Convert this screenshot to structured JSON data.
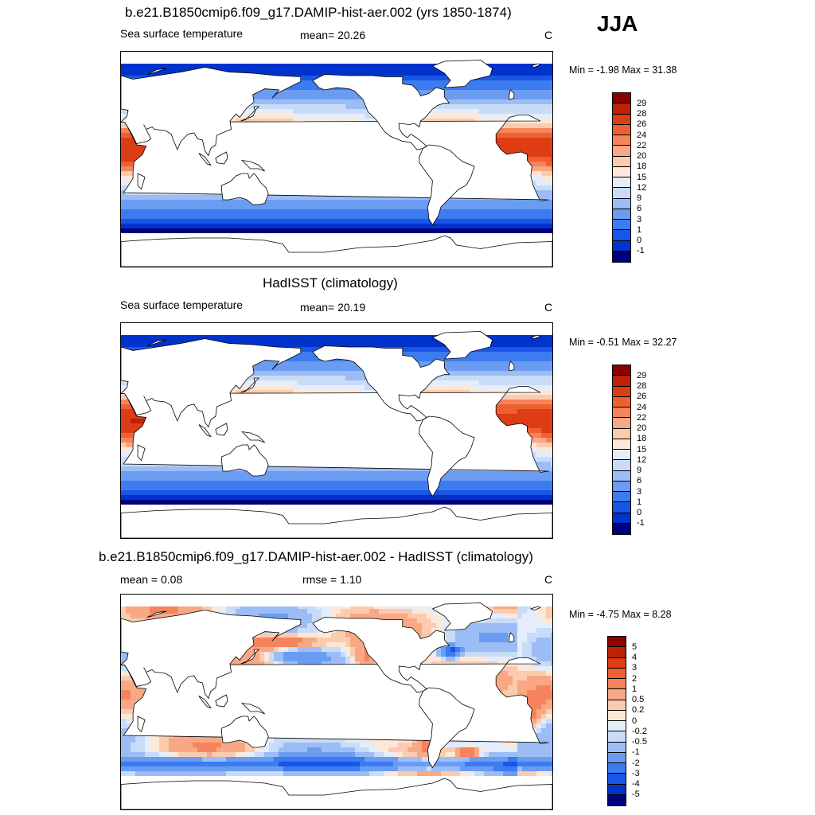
{
  "season_label": "JJA",
  "colors": {
    "sst_scale": [
      "#00007f",
      "#0033cc",
      "#1956e6",
      "#3c7cf0",
      "#6a9cf2",
      "#9cbcf5",
      "#c8dcf8",
      "#e4eefb",
      "#fde8d8",
      "#fbcbb0",
      "#f8a884",
      "#f5845c",
      "#ef6030",
      "#dd3c14",
      "#bb2208",
      "#8c0000"
    ],
    "diff_scale": [
      "#00007f",
      "#0033cc",
      "#1956e6",
      "#3c7cf0",
      "#6a9cf2",
      "#9cbcf5",
      "#c8dcf8",
      "#e4eefb",
      "#fde8d8",
      "#fbcbb0",
      "#f8a884",
      "#f5845c",
      "#ef6030",
      "#dd3c14",
      "#bb2208",
      "#8c0000"
    ]
  },
  "chart_data": [
    {
      "type": "heatmap",
      "title": "b.e21.B1850cmip6.f09_g17.DAMIP-hist-aer.002 (yrs 1850-1874)",
      "left_label": "Sea surface temperature",
      "center_label": "mean=  20.26",
      "right_label": "C",
      "minmax": "Min =  -1.98 Max =  31.38",
      "colorbar_ticks": [
        "29",
        "28",
        "26",
        "24",
        "22",
        "20",
        "18",
        "15",
        "12",
        "9",
        "6",
        "3",
        "1",
        "0",
        "-1"
      ]
    },
    {
      "type": "heatmap",
      "title": "HadISST (climatology)",
      "left_label": "Sea surface temperature",
      "center_label": "mean=  20.19",
      "right_label": "C",
      "minmax": "Min =  -0.51 Max =  32.27",
      "colorbar_ticks": [
        "29",
        "28",
        "26",
        "24",
        "22",
        "20",
        "18",
        "15",
        "12",
        "9",
        "6",
        "3",
        "1",
        "0",
        "-1"
      ]
    },
    {
      "type": "heatmap",
      "title": "b.e21.B1850cmip6.f09_g17.DAMIP-hist-aer.002 - HadISST (climatology)",
      "left_label": "mean =   0.08",
      "center_label": "rmse =   1.10",
      "right_label": "C",
      "minmax": "Min =  -4.75 Max =   8.28",
      "colorbar_ticks": [
        "5",
        "4",
        "3",
        "2",
        "1",
        "0.5",
        "0.2",
        "0",
        "-0.2",
        "-0.5",
        "-1",
        "-2",
        "-3",
        "-4",
        "-5"
      ]
    }
  ]
}
